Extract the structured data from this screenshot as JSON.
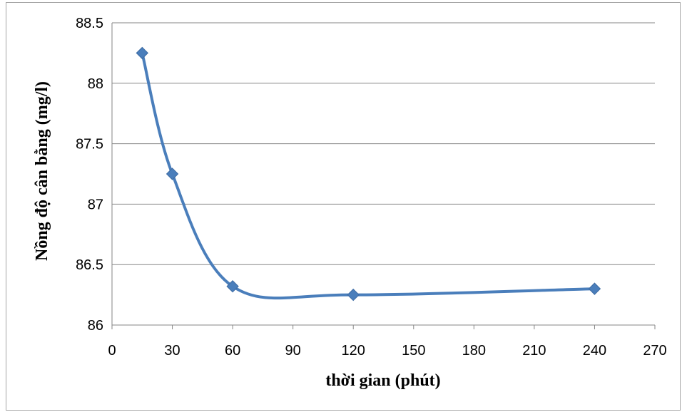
{
  "chart_data": {
    "type": "line",
    "smooth": true,
    "title": "",
    "xlabel": "thời gian (phút)",
    "ylabel": "Nồng độ cân bằng (mg/l)",
    "xlim": [
      0,
      270
    ],
    "ylim": [
      86,
      88.5
    ],
    "xticks": [
      "0",
      "30",
      "60",
      "90",
      "120",
      "150",
      "180",
      "210",
      "240",
      "270"
    ],
    "yticks": [
      "86",
      "86.5",
      "87",
      "87.5",
      "88",
      "88.5"
    ],
    "grid": "horizontal",
    "legend": "none",
    "marker": "diamond",
    "color": "#4a7ebb",
    "series": [
      {
        "x": [
          15,
          30,
          60,
          120,
          240
        ],
        "y": [
          88.25,
          87.25,
          86.32,
          86.25,
          86.3
        ]
      }
    ]
  }
}
